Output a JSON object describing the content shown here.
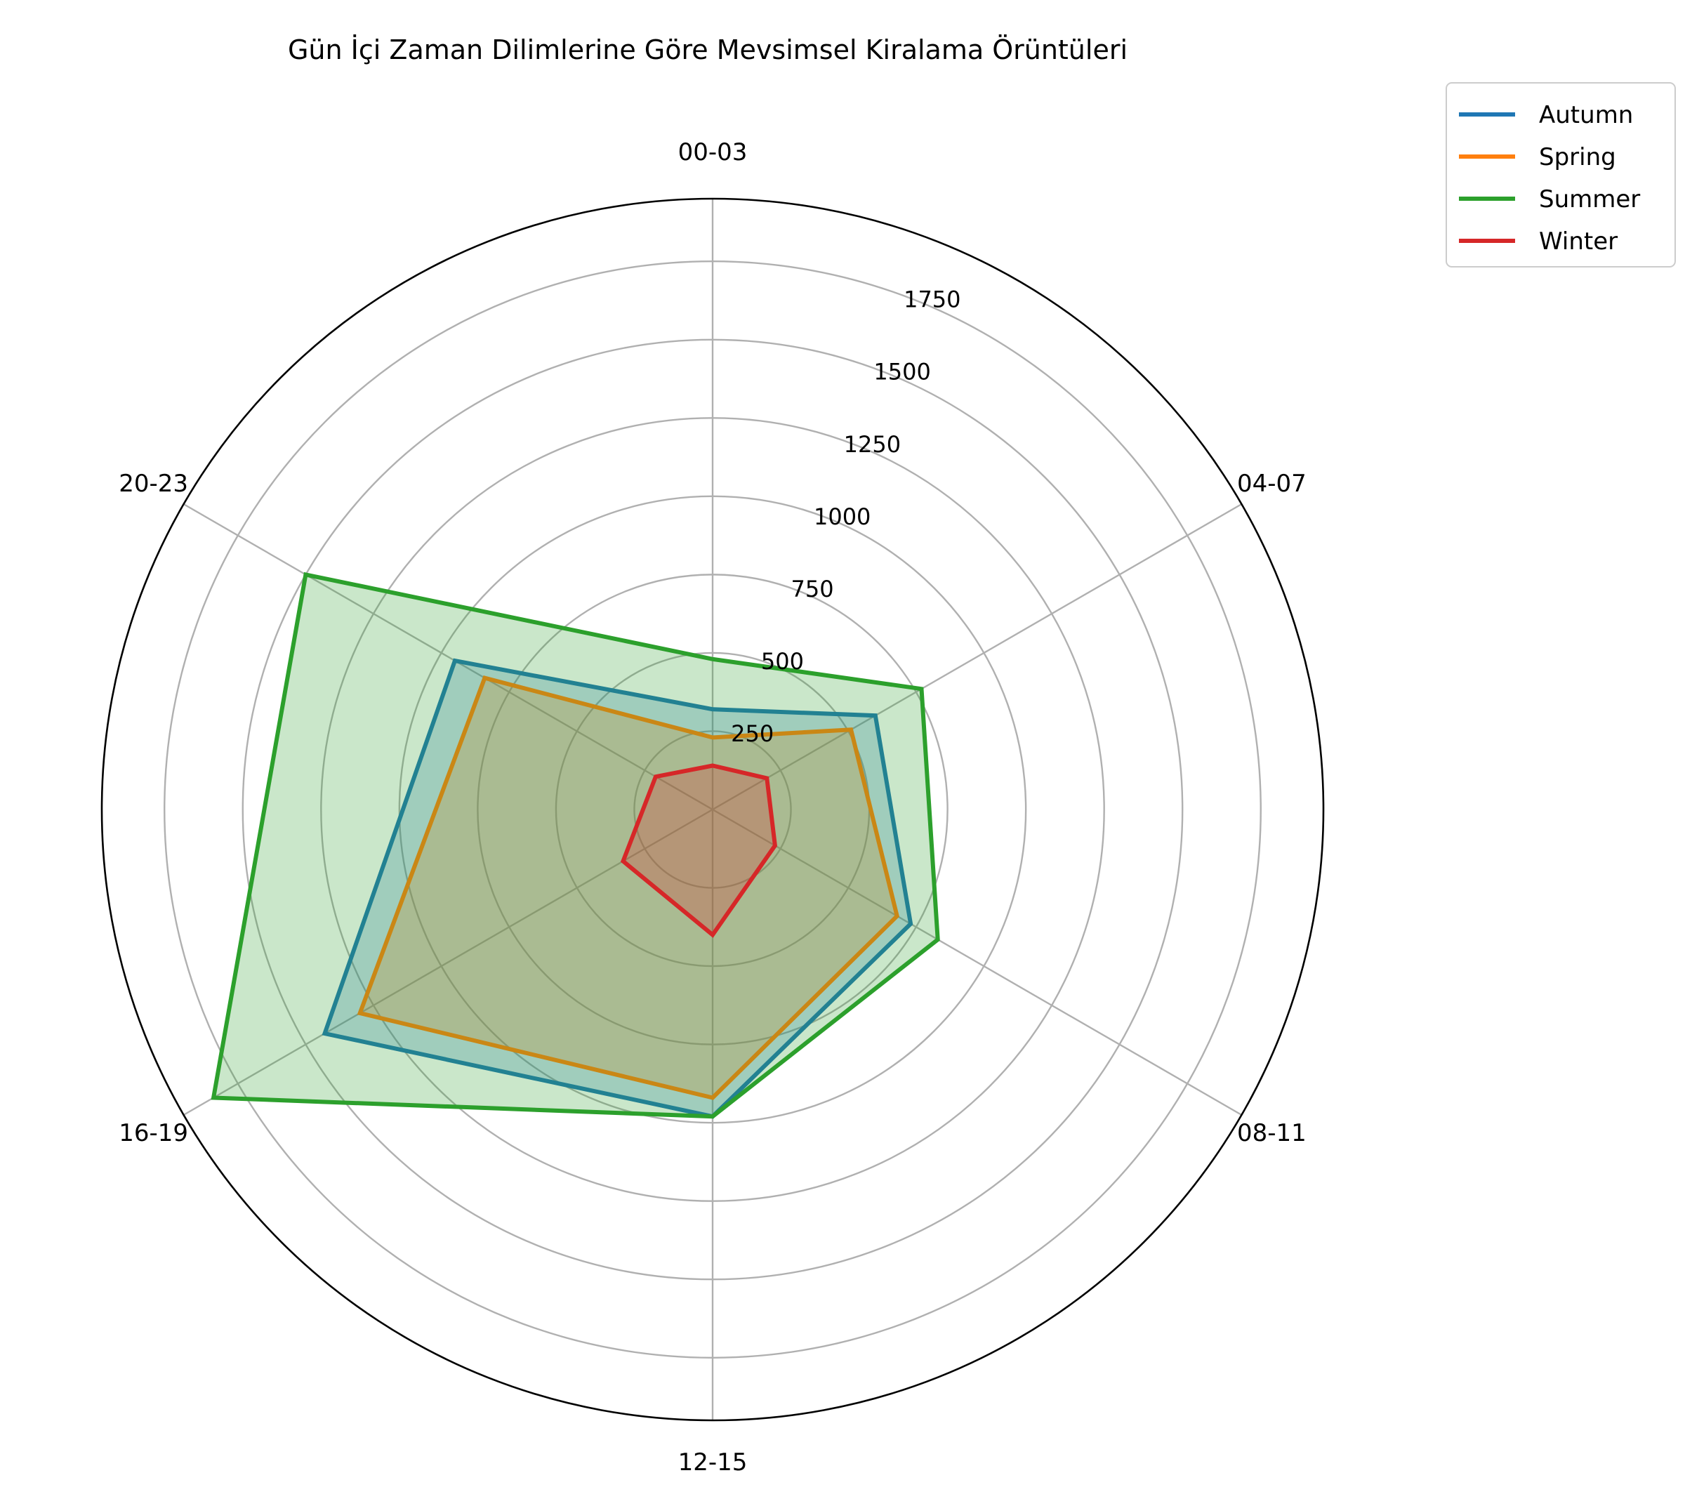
{
  "chart_data": {
    "type": "radar",
    "title": "Gün İçi Zaman Dilimlerine Göre Mevsimsel Kiralama Örüntüleri",
    "categories": [
      "00-03",
      "04-07",
      "08-11",
      "12-15",
      "16-19",
      "20-23"
    ],
    "r_ticks": [
      "250",
      "500",
      "750",
      "1000",
      "1250",
      "1500",
      "1750"
    ],
    "r_tick_values": [
      250,
      500,
      750,
      1000,
      1250,
      1500,
      1750
    ],
    "rlim": [
      0,
      1950
    ],
    "grid": true,
    "legend_placement": "upper right, outside",
    "series": [
      {
        "name": "Autumn",
        "color": "#1f77b4",
        "values": [
          320,
          600,
          730,
          980,
          1430,
          950
        ]
      },
      {
        "name": "Spring",
        "color": "#ff7f0e",
        "values": [
          230,
          510,
          680,
          920,
          1300,
          840
        ]
      },
      {
        "name": "Summer",
        "color": "#2ca02c",
        "values": [
          480,
          770,
          830,
          980,
          1840,
          1500
        ]
      },
      {
        "name": "Winter",
        "color": "#d62728",
        "values": [
          140,
          200,
          230,
          400,
          330,
          210
        ]
      }
    ]
  }
}
